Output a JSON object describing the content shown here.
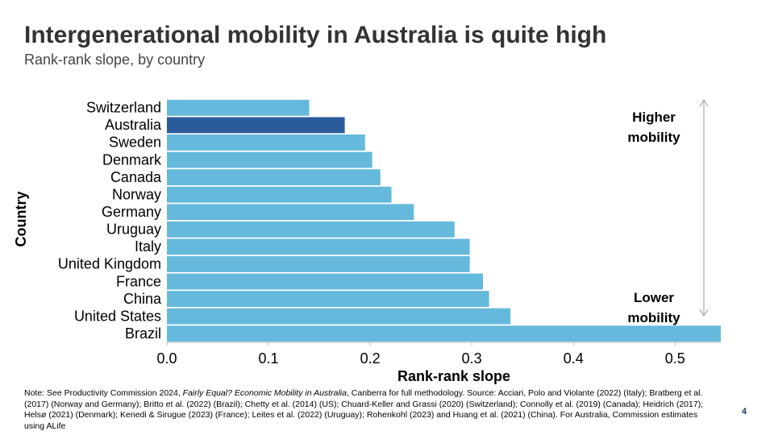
{
  "chart_data": {
    "type": "bar",
    "orientation": "horizontal",
    "title": "Intergenerational mobility in Australia is quite high",
    "subtitle": "Rank-rank slope, by country",
    "x_label": "Rank-rank slope",
    "y_label": "Country",
    "categories": [
      "Switzerland",
      "Australia",
      "Sweden",
      "Denmark",
      "Canada",
      "Norway",
      "Germany",
      "Uruguay",
      "Italy",
      "United Kingdom",
      "France",
      "China",
      "United States",
      "Brazil"
    ],
    "values": [
      0.14,
      0.175,
      0.195,
      0.202,
      0.21,
      0.221,
      0.243,
      0.283,
      0.298,
      0.298,
      0.311,
      0.317,
      0.338,
      0.545
    ],
    "colors": [
      "#65b9dc",
      "#2a5b9a",
      "#65b9dc",
      "#65b9dc",
      "#65b9dc",
      "#65b9dc",
      "#65b9dc",
      "#65b9dc",
      "#65b9dc",
      "#65b9dc",
      "#65b9dc",
      "#65b9dc",
      "#65b9dc",
      "#65b9dc"
    ],
    "xlim": [
      0,
      0.545
    ],
    "xticks": [
      {
        "value": 0,
        "label": "0.0"
      },
      0.1,
      0.2,
      0.3,
      0.4,
      0.5
    ],
    "annotations": [
      "Higher mobility",
      "Lower mobility"
    ]
  },
  "footer": {
    "note": [
      "Note: See Productivity Commission 2024, ",
      "Fairly Equal? Economic Mobility in Australia",
      ", Canberra for full methodology. Source: Acciari, Polo and Violante (2022) (Italy); Bratberg et al. (2017) (Norway and Germany); Britto et al. (2022) (Brazil); Chetty et al. (2014) (US); Chuard-Keller and Grassi (2020) (Switzerland); Connolly et al. (2019) (Canada); Heidrich (2017); Helsø (2021) (Denmark); Kenedi & Sirugue (2023) (France); Leites et al. (2022) (Uruguay); Rohenkohl (2023) and Huang et al. (2021) (China). For Australia, Commission estimates using ALife"
    ],
    "page_number": "4"
  }
}
